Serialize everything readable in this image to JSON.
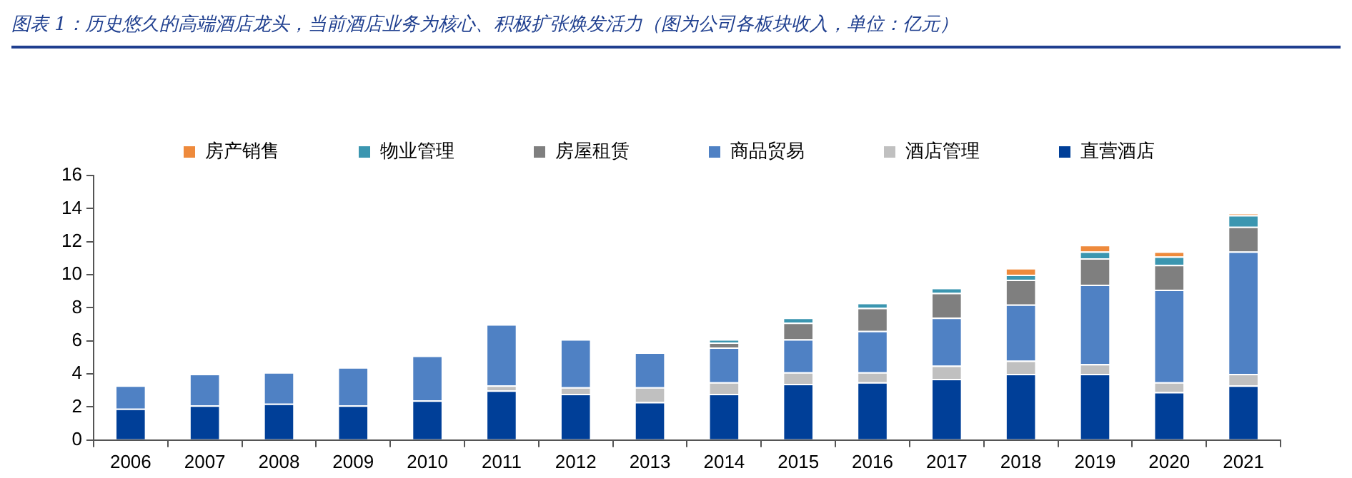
{
  "chart_data": {
    "type": "bar",
    "title": "图表 1：历史悠久的高端酒店龙头，当前酒店业务为核心、积极扩张焕发活力（图为公司各板块收入，单位：亿元）",
    "categories": [
      "2006",
      "2007",
      "2008",
      "2009",
      "2010",
      "2011",
      "2012",
      "2013",
      "2014",
      "2015",
      "2016",
      "2017",
      "2018",
      "2019",
      "2020",
      "2021"
    ],
    "stacked": true,
    "ylim": [
      0,
      16
    ],
    "yticks": [
      0,
      2,
      4,
      6,
      8,
      10,
      12,
      14,
      16
    ],
    "grid": false,
    "legend": "top",
    "series": [
      {
        "name": "直营酒店",
        "color": "#003f98",
        "values": [
          1.9,
          2.1,
          2.2,
          2.1,
          2.4,
          3.0,
          2.8,
          2.3,
          2.8,
          3.4,
          3.5,
          3.7,
          4.0,
          4.0,
          2.9,
          3.3
        ]
      },
      {
        "name": "酒店管理",
        "color": "#c0c0c0",
        "values": [
          null,
          null,
          null,
          null,
          null,
          0.3,
          0.4,
          0.9,
          0.7,
          0.7,
          0.6,
          0.8,
          0.8,
          0.6,
          0.6,
          0.7
        ]
      },
      {
        "name": "商品贸易",
        "color": "#4f81c4",
        "values": [
          1.4,
          1.9,
          1.9,
          2.3,
          2.7,
          3.7,
          2.9,
          2.1,
          2.1,
          2.0,
          2.5,
          2.9,
          3.4,
          4.8,
          5.6,
          7.4
        ]
      },
      {
        "name": "房屋租赁",
        "color": "#7f7f7f",
        "values": [
          null,
          null,
          null,
          null,
          null,
          null,
          null,
          null,
          0.3,
          1.0,
          1.4,
          1.5,
          1.5,
          1.6,
          1.5,
          1.5
        ]
      },
      {
        "name": "物业管理",
        "color": "#3b96b0",
        "values": [
          null,
          null,
          null,
          null,
          null,
          null,
          null,
          null,
          0.2,
          0.3,
          0.3,
          0.3,
          0.3,
          0.4,
          0.5,
          0.7
        ]
      },
      {
        "name": "房产销售",
        "color": "#ee8a3c",
        "values": [
          null,
          null,
          null,
          null,
          null,
          null,
          null,
          null,
          null,
          null,
          null,
          null,
          0.4,
          0.4,
          0.3,
          0.1
        ]
      }
    ]
  }
}
